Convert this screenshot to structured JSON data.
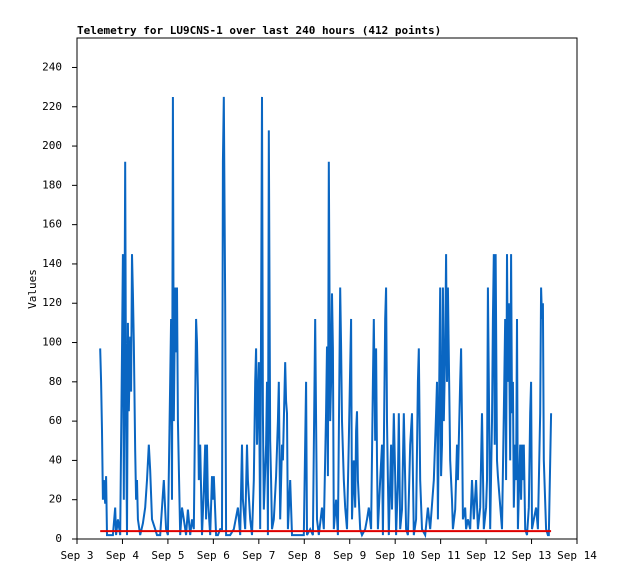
{
  "chart_data": {
    "type": "line",
    "title": "Telemetry for LU9CNS-1 over last 240 hours (412 points)",
    "y_label": "Values",
    "xlim": [
      3,
      14
    ],
    "xticks": [
      {
        "value": 3,
        "label": "Sep 3"
      },
      {
        "value": 4,
        "label": "Sep 4"
      },
      {
        "value": 5,
        "label": "Sep 5"
      },
      {
        "value": 6,
        "label": "Sep 6"
      },
      {
        "value": 7,
        "label": "Sep 7"
      },
      {
        "value": 8,
        "label": "Sep 8"
      },
      {
        "value": 9,
        "label": "Sep 9"
      },
      {
        "value": 10,
        "label": "Sep 10"
      },
      {
        "value": 11,
        "label": "Sep 11"
      },
      {
        "value": 12,
        "label": "Sep 12"
      },
      {
        "value": 13,
        "label": "Sep 13"
      },
      {
        "value": 14,
        "label": "Sep 14"
      }
    ],
    "ylim": [
      0,
      255
    ],
    "yticks": [
      0,
      20,
      40,
      60,
      80,
      100,
      120,
      140,
      160,
      180,
      200,
      220,
      240
    ],
    "series": [
      {
        "color": "#0a66c2",
        "x": [
          3.51,
          3.53,
          3.55,
          3.57,
          3.59,
          3.62,
          3.64,
          3.66,
          3.73,
          3.79,
          3.84,
          3.86,
          3.9,
          3.95,
          3.99,
          4.01,
          4.03,
          4.06,
          4.08,
          4.1,
          4.12,
          4.14,
          4.17,
          4.19,
          4.21,
          4.23,
          4.25,
          4.28,
          4.3,
          4.32,
          4.34,
          4.39,
          4.45,
          4.5,
          4.54,
          4.58,
          4.61,
          4.65,
          4.72,
          4.76,
          4.83,
          4.91,
          4.96,
          5,
          5.05,
          5.07,
          5.09,
          5.11,
          5.13,
          5.16,
          5.18,
          5.2,
          5.22,
          5.27,
          5.31,
          5.35,
          5.4,
          5.44,
          5.49,
          5.53,
          5.57,
          5.62,
          5.64,
          5.66,
          5.68,
          5.71,
          5.75,
          5.79,
          5.82,
          5.84,
          5.86,
          5.88,
          5.93,
          5.97,
          5.99,
          6.01,
          6.06,
          6.1,
          6.15,
          6.19,
          6.21,
          6.23,
          6.26,
          6.28,
          6.32,
          6.37,
          6.45,
          6.54,
          6.59,
          6.63,
          6.65,
          6.7,
          6.74,
          6.76,
          6.81,
          6.85,
          6.89,
          6.92,
          6.94,
          6.96,
          6.98,
          7,
          7.03,
          7.05,
          7.07,
          7.09,
          7.11,
          7.16,
          7.18,
          7.2,
          7.22,
          7.25,
          7.27,
          7.29,
          7.33,
          7.38,
          7.42,
          7.44,
          7.47,
          7.51,
          7.53,
          7.58,
          7.6,
          7.62,
          7.64,
          7.69,
          7.73,
          7.82,
          7.91,
          7.99,
          8.04,
          8.06,
          8.13,
          8.19,
          8.24,
          8.26,
          8.28,
          8.32,
          8.39,
          8.43,
          8.48,
          8.5,
          8.52,
          8.54,
          8.57,
          8.59,
          8.61,
          8.63,
          8.65,
          8.7,
          8.74,
          8.79,
          8.81,
          8.83,
          8.87,
          8.9,
          8.94,
          8.98,
          9.03,
          9.05,
          9.09,
          9.12,
          9.14,
          9.16,
          9.18,
          9.23,
          9.27,
          9.34,
          9.38,
          9.42,
          9.47,
          9.51,
          9.53,
          9.56,
          9.58,
          9.6,
          9.62,
          9.67,
          9.71,
          9.73,
          9.78,
          9.8,
          9.82,
          9.84,
          9.86,
          9.91,
          9.93,
          9.97,
          10,
          10.02,
          10.06,
          10.08,
          10.11,
          10.15,
          10.19,
          10.22,
          10.24,
          10.28,
          10.33,
          10.37,
          10.41,
          10.46,
          10.5,
          10.52,
          10.55,
          10.59,
          10.66,
          10.72,
          10.77,
          10.85,
          10.9,
          10.92,
          10.94,
          10.99,
          11.01,
          11.03,
          11.05,
          11.07,
          11.1,
          11.12,
          11.14,
          11.16,
          11.21,
          11.25,
          11.27,
          11.32,
          11.36,
          11.38,
          11.43,
          11.45,
          11.47,
          11.49,
          11.54,
          11.56,
          11.6,
          11.65,
          11.69,
          11.73,
          11.78,
          11.82,
          11.87,
          11.91,
          11.95,
          12,
          12.02,
          12.04,
          12.06,
          12.09,
          12.13,
          12.15,
          12.17,
          12.19,
          12.21,
          12.24,
          12.26,
          12.3,
          12.35,
          12.39,
          12.42,
          12.44,
          12.46,
          12.48,
          12.5,
          12.53,
          12.55,
          12.57,
          12.59,
          12.61,
          12.64,
          12.66,
          12.68,
          12.7,
          12.75,
          12.77,
          12.79,
          12.81,
          12.83,
          12.86,
          12.9,
          12.94,
          12.97,
          12.99,
          13.01,
          13.05,
          13.1,
          13.14,
          13.19,
          13.21,
          13.23,
          13.25,
          13.27,
          13.32,
          13.36,
          13.38,
          13.43
        ],
        "values": [
          97,
          80,
          55,
          20,
          30,
          18,
          32,
          2,
          2,
          2,
          16,
          2,
          10,
          2,
          95,
          145,
          20,
          192,
          60,
          2,
          110,
          65,
          103,
          75,
          145,
          125,
          100,
          45,
          20,
          30,
          10,
          2,
          8,
          16,
          30,
          48,
          35,
          10,
          5,
          2,
          2,
          30,
          5,
          2,
          80,
          112,
          20,
          225,
          60,
          128,
          95,
          128,
          60,
          2,
          16,
          10,
          2,
          15,
          2,
          10,
          5,
          112,
          100,
          75,
          30,
          48,
          2,
          25,
          48,
          10,
          48,
          20,
          2,
          32,
          20,
          32,
          2,
          2,
          5,
          5,
          192,
          225,
          120,
          2,
          2,
          2,
          5,
          16,
          2,
          48,
          20,
          5,
          48,
          30,
          10,
          2,
          30,
          80,
          97,
          48,
          70,
          90,
          5,
          112,
          225,
          64,
          15,
          48,
          80,
          2,
          208,
          50,
          30,
          5,
          10,
          32,
          60,
          80,
          10,
          48,
          40,
          90,
          70,
          64,
          5,
          30,
          2,
          2,
          2,
          2,
          80,
          2,
          5,
          2,
          112,
          60,
          10,
          2,
          16,
          5,
          65,
          98,
          32,
          192,
          60,
          80,
          125,
          97,
          5,
          20,
          2,
          128,
          98,
          60,
          30,
          16,
          5,
          50,
          112,
          10,
          40,
          16,
          55,
          65,
          30,
          5,
          2,
          5,
          10,
          16,
          5,
          80,
          112,
          50,
          97,
          40,
          5,
          30,
          48,
          2,
          112,
          128,
          60,
          30,
          2,
          48,
          15,
          64,
          32,
          2,
          30,
          64,
          5,
          15,
          64,
          30,
          5,
          2,
          48,
          64,
          2,
          10,
          80,
          97,
          30,
          5,
          2,
          16,
          5,
          30,
          64,
          80,
          10,
          128,
          32,
          48,
          128,
          60,
          97,
          145,
          80,
          128,
          40,
          20,
          5,
          15,
          48,
          30,
          80,
          97,
          60,
          10,
          16,
          5,
          10,
          5,
          30,
          10,
          30,
          5,
          16,
          64,
          5,
          16,
          30,
          128,
          80,
          5,
          60,
          112,
          145,
          48,
          145,
          40,
          32,
          20,
          5,
          64,
          112,
          30,
          145,
          80,
          120,
          40,
          145,
          64,
          80,
          16,
          48,
          30,
          112,
          5,
          48,
          20,
          48,
          30,
          48,
          5,
          2,
          16,
          64,
          80,
          5,
          10,
          16,
          5,
          64,
          128,
          112,
          120,
          40,
          5,
          2,
          2,
          64
        ]
      },
      {
        "color": "#e00000",
        "x": [
          3.51,
          13.43
        ],
        "values": [
          4,
          4
        ]
      }
    ]
  }
}
